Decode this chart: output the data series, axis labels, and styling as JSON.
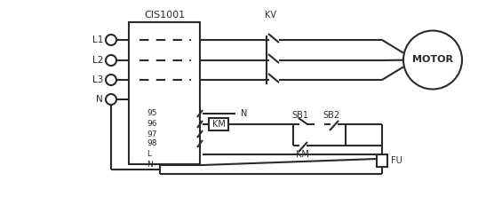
{
  "bg_color": "#ffffff",
  "line_color": "#2a2a2a",
  "title": "CIS1001",
  "motor_label": "MOTOR",
  "km_label": "KM",
  "sb1_label": "SB1",
  "sb2_label": "SB2",
  "fu_label": "FU",
  "kv_label": "KV",
  "l1_label": "L1",
  "l2_label": "L2",
  "l3_label": "L3",
  "n_label": "N",
  "port95": "95",
  "port96": "96",
  "port97": "97",
  "port98": "98",
  "port_n_top": "N",
  "port_l": "L",
  "port_n_bot": "N",
  "port_n_ctrl": "N"
}
